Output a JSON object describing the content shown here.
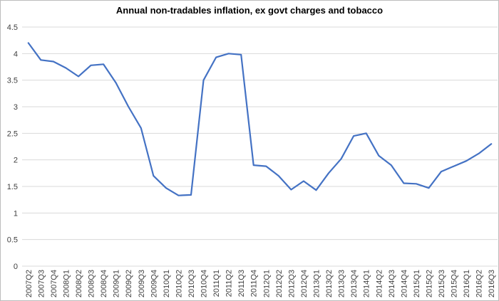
{
  "chart_data": {
    "type": "line",
    "title": "Annual non-tradables inflation, ex govt charges and tobacco",
    "xlabel": "",
    "ylabel": "",
    "ylim": [
      0,
      4.5
    ],
    "ytick_step": 0.5,
    "yticks": [
      "0",
      "0.5",
      "1",
      "1.5",
      "2",
      "2.5",
      "3",
      "3.5",
      "4",
      "4.5"
    ],
    "grid": "horizontal",
    "legend_position": "none",
    "categories": [
      "2007Q2",
      "2007Q3",
      "2007Q4",
      "2008Q1",
      "2008Q2",
      "2008Q3",
      "2008Q4",
      "2009Q1",
      "2009Q2",
      "2009Q3",
      "2009Q4",
      "2010Q1",
      "2010Q2",
      "2010Q3",
      "2010Q4",
      "2011Q1",
      "2011Q2",
      "2011Q3",
      "2011Q4",
      "2012Q1",
      "2012Q2",
      "2012Q3",
      "2012Q4",
      "2013Q1",
      "2013Q2",
      "2013Q3",
      "2013Q4",
      "2014Q1",
      "2014Q2",
      "2014Q3",
      "2014Q4",
      "2015Q1",
      "2015Q2",
      "2015Q3",
      "2015Q4",
      "2016Q1",
      "2016Q2",
      "2016Q3"
    ],
    "series": [
      {
        "name": "Annual non-tradables inflation, ex govt charges and tobacco",
        "values": [
          4.2,
          3.88,
          3.85,
          3.73,
          3.57,
          3.78,
          3.8,
          3.45,
          3.0,
          2.6,
          1.7,
          1.47,
          1.33,
          1.34,
          3.5,
          3.93,
          4.0,
          3.98,
          1.9,
          1.88,
          1.7,
          1.44,
          1.6,
          1.43,
          1.75,
          2.02,
          2.45,
          2.5,
          2.08,
          1.9,
          1.56,
          1.55,
          1.47,
          1.78,
          1.88,
          1.98,
          2.12,
          2.3
        ]
      }
    ],
    "colors": {
      "line": "#4472C4",
      "gridline": "#D9D9D9",
      "tick_label": "#404040",
      "title": "#000000",
      "chart_border": "#BDBDBD",
      "background": "#FFFFFF"
    }
  }
}
